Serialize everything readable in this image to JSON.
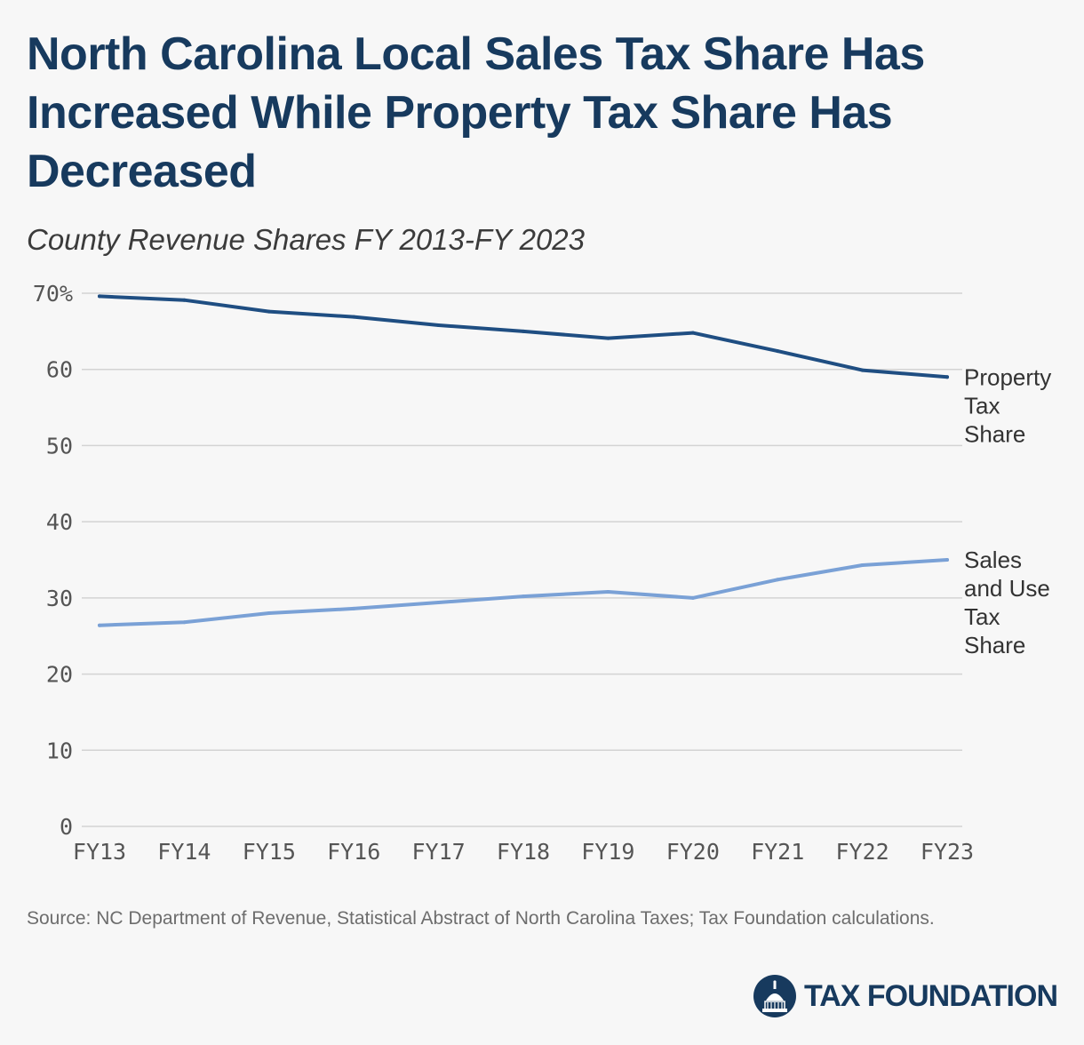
{
  "title": "North Carolina Local Sales Tax Share Has Increased While Property Tax Share Has Decreased",
  "subtitle": "County Revenue Shares FY 2013-FY 2023",
  "source": "Source: NC Department of Revenue, Statistical Abstract of North Carolina Taxes; Tax Foundation calculations.",
  "brand": {
    "name": "TAX FOUNDATION",
    "color": "#173a5e"
  },
  "chart_data": {
    "type": "line",
    "title": "North Carolina Local Sales Tax Share Has Increased While Property Tax Share Has Decreased",
    "subtitle": "County Revenue Shares FY 2013-FY 2023",
    "xlabel": "",
    "ylabel": "",
    "categories": [
      "FY13",
      "FY14",
      "FY15",
      "FY16",
      "FY17",
      "FY18",
      "FY19",
      "FY20",
      "FY21",
      "FY22",
      "FY23"
    ],
    "ylim": [
      0,
      70
    ],
    "yticks": [
      0,
      10,
      20,
      30,
      40,
      50,
      60,
      70
    ],
    "ytick_labels": [
      "0",
      "10",
      "20",
      "30",
      "40",
      "50",
      "60",
      "70%"
    ],
    "grid": true,
    "legend": "inline-right",
    "series": [
      {
        "name": "Property Tax Share",
        "label_lines": [
          "Property",
          "Tax",
          "Share"
        ],
        "color": "#1f4e82",
        "values": [
          69.6,
          69.1,
          67.6,
          66.9,
          65.8,
          65.0,
          64.1,
          64.8,
          62.4,
          59.9,
          59.0
        ]
      },
      {
        "name": "Sales and Use Tax Share",
        "label_lines": [
          "Sales",
          "and Use",
          "Tax",
          "Share"
        ],
        "color": "#7aa1d6",
        "values": [
          26.4,
          26.8,
          28.0,
          28.6,
          29.4,
          30.2,
          30.8,
          30.0,
          32.4,
          34.3,
          35.0
        ]
      }
    ]
  }
}
